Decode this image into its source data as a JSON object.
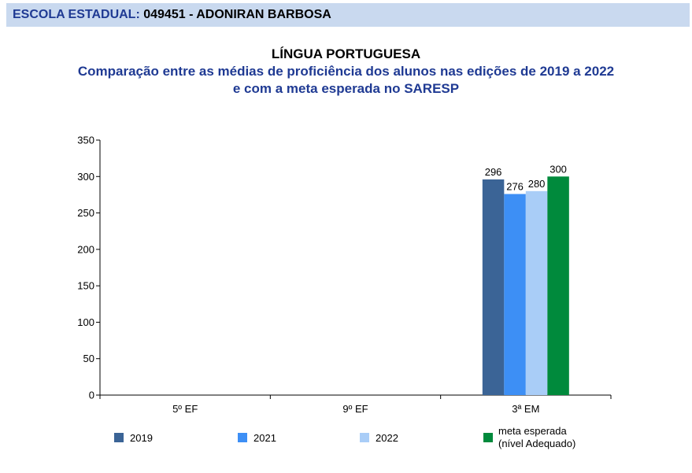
{
  "header": {
    "label": "ESCOLA ESTADUAL:",
    "value": "049451 - ADONIRAN BARBOSA"
  },
  "chart_data": {
    "type": "bar",
    "title": "LÍNGUA PORTUGUESA",
    "subtitle_lines": [
      "Comparação entre as médias de proficiência dos alunos nas edições de 2019 a 2022",
      "e com a meta esperada no SARESP"
    ],
    "categories": [
      "5º EF",
      "9º EF",
      "3ª EM"
    ],
    "series": [
      {
        "name": "2019",
        "color": "#3b6496",
        "values": [
          null,
          null,
          296
        ]
      },
      {
        "name": "2021",
        "color": "#3d8ff5",
        "values": [
          null,
          null,
          276
        ]
      },
      {
        "name": "2022",
        "color": "#a9cdf7",
        "values": [
          null,
          null,
          280
        ]
      },
      {
        "name_lines": [
          "meta esperada",
          "(nível Adequado)"
        ],
        "color": "#008a3c",
        "values": [
          null,
          null,
          300
        ]
      }
    ],
    "yticks": [
      0,
      50,
      100,
      150,
      200,
      250,
      300,
      350
    ],
    "ylim": [
      0,
      350
    ],
    "grid": false,
    "legend_position": "bottom"
  }
}
